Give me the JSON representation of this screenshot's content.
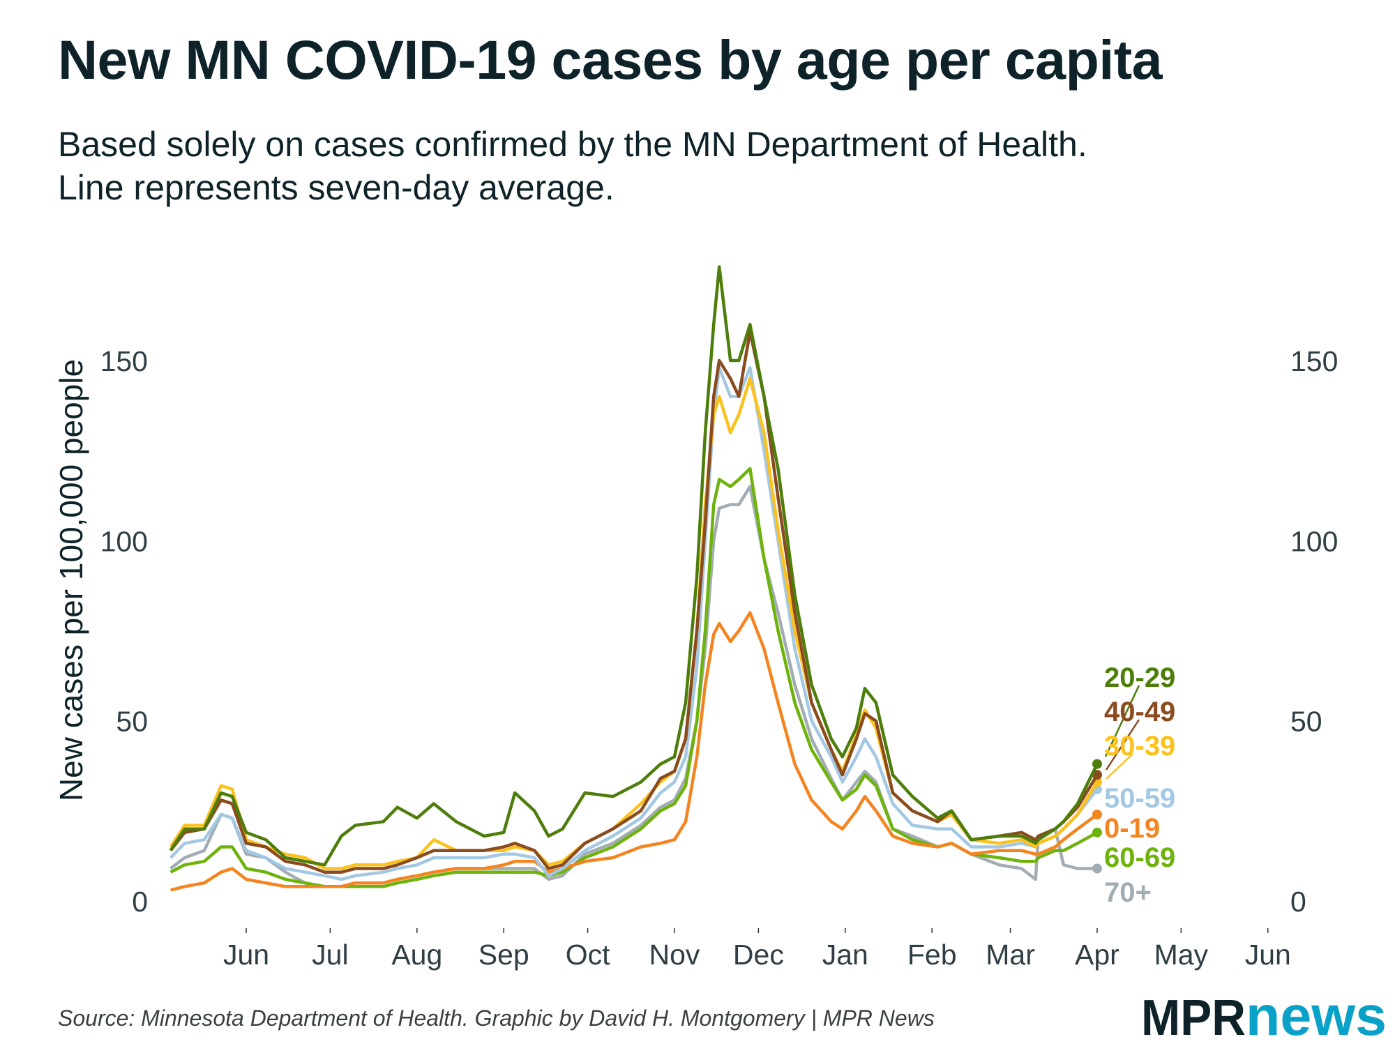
{
  "chart_data": {
    "type": "line",
    "title": "New MN COVID-19 cases by age per capita",
    "subtitle": [
      "Based solely on cases confirmed by the MN Department of Health.",
      "Line represents seven-day average."
    ],
    "ylabel": "New cases per 100,000 people",
    "xlabel": "",
    "ylim": [
      0,
      175
    ],
    "xlim": [
      "2020-05-01",
      "2021-06-01"
    ],
    "yticks": [
      "0",
      "50",
      "100",
      "150"
    ],
    "ytick_values": [
      0,
      50,
      100,
      150
    ],
    "xticks": [
      "Jun",
      "Jul",
      "Aug",
      "Sep",
      "Oct",
      "Nov",
      "Dec",
      "Jan",
      "Feb",
      "Mar",
      "Apr",
      "May",
      "Jun"
    ],
    "xtick_dates": [
      "2020-06-01",
      "2020-07-01",
      "2020-08-01",
      "2020-09-01",
      "2020-10-01",
      "2020-11-01",
      "2020-12-01",
      "2021-01-01",
      "2021-02-01",
      "2021-03-01",
      "2021-04-01",
      "2021-05-01",
      "2021-06-01"
    ],
    "grid": false,
    "legend": "direct labels at line ends (right)",
    "x": [
      "2020-05-05",
      "2020-05-10",
      "2020-05-17",
      "2020-05-23",
      "2020-05-27",
      "2020-06-01",
      "2020-06-08",
      "2020-06-15",
      "2020-06-22",
      "2020-06-29",
      "2020-07-05",
      "2020-07-10",
      "2020-07-20",
      "2020-07-25",
      "2020-08-01",
      "2020-08-07",
      "2020-08-15",
      "2020-08-25",
      "2020-09-01",
      "2020-09-05",
      "2020-09-12",
      "2020-09-17",
      "2020-09-22",
      "2020-09-30",
      "2020-10-10",
      "2020-10-20",
      "2020-10-27",
      "2020-11-01",
      "2020-11-05",
      "2020-11-09",
      "2020-11-12",
      "2020-11-15",
      "2020-11-17",
      "2020-11-21",
      "2020-11-24",
      "2020-11-28",
      "2020-12-03",
      "2020-12-08",
      "2020-12-14",
      "2020-12-20",
      "2020-12-27",
      "2020-12-31",
      "2021-01-05",
      "2021-01-08",
      "2021-01-12",
      "2021-01-18",
      "2021-01-25",
      "2021-02-03",
      "2021-02-08",
      "2021-02-15",
      "2021-02-25",
      "2021-03-05",
      "2021-03-10",
      "2021-03-11",
      "2021-03-17",
      "2021-03-20",
      "2021-03-25",
      "2021-04-01"
    ],
    "series": [
      {
        "name": "20-29",
        "color": "#4d7d0a",
        "values": [
          14,
          20,
          20,
          30,
          29,
          19,
          17,
          12,
          11,
          10,
          18,
          21,
          22,
          26,
          23,
          27,
          22,
          18,
          19,
          30,
          25,
          18,
          20,
          30,
          29,
          33,
          38,
          40,
          55,
          90,
          130,
          160,
          176,
          150,
          150,
          160,
          140,
          120,
          85,
          60,
          45,
          40,
          48,
          59,
          55,
          35,
          29,
          23,
          25,
          17,
          18,
          18,
          16,
          17,
          20,
          22,
          27,
          38
        ]
      },
      {
        "name": "40-49",
        "color": "#8a4b1f",
        "values": [
          14,
          19,
          20,
          28,
          27,
          16,
          15,
          11,
          10,
          8,
          8,
          9,
          9,
          10,
          12,
          14,
          14,
          14,
          15,
          16,
          14,
          9,
          10,
          16,
          20,
          25,
          34,
          36,
          45,
          75,
          105,
          140,
          150,
          145,
          140,
          158,
          140,
          112,
          80,
          55,
          42,
          35,
          45,
          52,
          50,
          30,
          25,
          22,
          25,
          17,
          18,
          19,
          17,
          18,
          20,
          22,
          26,
          35
        ]
      },
      {
        "name": "30-39",
        "color": "#fcc11c",
        "values": [
          15,
          21,
          21,
          32,
          31,
          17,
          15,
          13,
          12,
          9,
          9,
          10,
          10,
          11,
          12,
          17,
          14,
          14,
          14,
          15,
          14,
          10,
          11,
          16,
          20,
          27,
          33,
          36,
          45,
          75,
          110,
          135,
          140,
          130,
          135,
          145,
          130,
          103,
          75,
          55,
          42,
          36,
          46,
          53,
          48,
          30,
          25,
          22,
          24,
          17,
          16,
          17,
          15,
          16,
          18,
          20,
          24,
          33
        ]
      },
      {
        "name": "50-59",
        "color": "#a3c8e4",
        "values": [
          12,
          16,
          17,
          24,
          23,
          14,
          12,
          9,
          8,
          7,
          6,
          7,
          8,
          9,
          10,
          12,
          12,
          12,
          13,
          13,
          12,
          7,
          9,
          14,
          18,
          23,
          30,
          33,
          40,
          65,
          100,
          135,
          148,
          140,
          140,
          148,
          125,
          100,
          70,
          50,
          40,
          33,
          40,
          45,
          40,
          27,
          21,
          20,
          20,
          15,
          15,
          16,
          15,
          16,
          18,
          20,
          24,
          31
        ]
      },
      {
        "name": "0-19",
        "color": "#f4841f",
        "values": [
          3,
          4,
          5,
          8,
          9,
          6,
          5,
          4,
          4,
          4,
          4,
          5,
          5,
          6,
          7,
          8,
          9,
          9,
          10,
          11,
          11,
          8,
          9,
          11,
          12,
          15,
          16,
          17,
          22,
          40,
          60,
          74,
          77,
          72,
          75,
          80,
          70,
          55,
          38,
          28,
          22,
          20,
          25,
          29,
          25,
          18,
          16,
          15,
          16,
          13,
          14,
          14,
          13,
          13,
          15,
          17,
          20,
          24
        ]
      },
      {
        "name": "60-69",
        "color": "#6db30b",
        "values": [
          8,
          10,
          11,
          15,
          15,
          9,
          8,
          6,
          5,
          4,
          4,
          4,
          4,
          5,
          6,
          7,
          8,
          8,
          8,
          8,
          8,
          7,
          8,
          12,
          15,
          20,
          25,
          27,
          32,
          50,
          75,
          110,
          117,
          115,
          117,
          120,
          95,
          75,
          55,
          42,
          33,
          28,
          31,
          35,
          32,
          20,
          17,
          15,
          16,
          13,
          12,
          11,
          11,
          12,
          14,
          14,
          16,
          19
        ]
      },
      {
        "name": "70+",
        "color": "#a2adb3",
        "values": [
          9,
          12,
          14,
          24,
          23,
          13,
          12,
          8,
          5,
          4,
          4,
          5,
          5,
          6,
          7,
          8,
          9,
          9,
          9,
          9,
          9,
          6,
          7,
          13,
          16,
          21,
          26,
          28,
          34,
          50,
          70,
          100,
          109,
          110,
          110,
          115,
          95,
          80,
          60,
          45,
          34,
          28,
          33,
          36,
          33,
          20,
          18,
          15,
          16,
          13,
          10,
          9,
          6,
          18,
          20,
          10,
          9,
          9
        ]
      }
    ]
  },
  "footer": {
    "source": "Source: Minnesota Department of Health. Graphic by David H. Montgomery | MPR News",
    "logo": {
      "part1": "MPR",
      "part2": "news",
      "color1": "#0e2329",
      "color2": "#0aa1c9"
    }
  }
}
